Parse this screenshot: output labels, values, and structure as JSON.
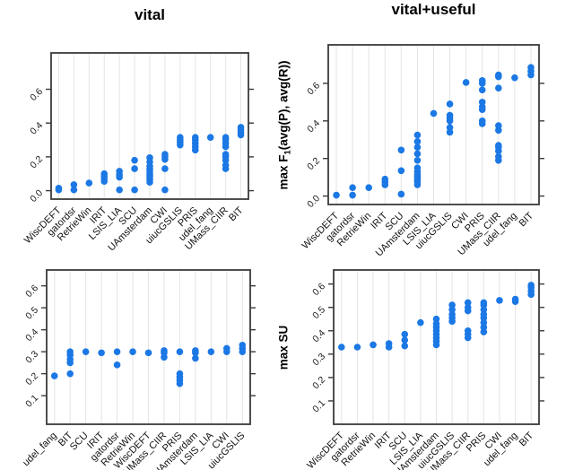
{
  "figure": {
    "background": "#ffffff",
    "dot_color": "#1b78e4",
    "grid_color": "#e4e4e4",
    "box_color": "#3a3a3a",
    "tick_color": "#3a3a3a",
    "text_color": "#000000",
    "column_titles": [
      "vital",
      "vital+useful"
    ],
    "row_ylabels": [
      "max F1(avg(P), avg(R))",
      "max SU"
    ]
  },
  "chart_data": [
    {
      "id": "f1-vital",
      "type": "scatter",
      "title": "vital",
      "xlabel": "",
      "ylabel": "",
      "grid": "vertical",
      "legend": "none",
      "yticks": [
        0.0,
        0.2,
        0.4,
        0.6
      ],
      "ytick_labels": [
        "0.0",
        "0.2",
        "0.4",
        "0.6"
      ],
      "ylim": [
        -0.05,
        0.815
      ],
      "categories": [
        "WiscDEFT",
        "gatordsr",
        "RetrieWin",
        "IRIT",
        "LSIS_LIA",
        "SCU",
        "UAmsterdam",
        "CWI",
        "uiucGSLIS",
        "PRIS",
        "udel_fang",
        "UMass_CIIR",
        "BIT"
      ],
      "points": [
        [
          0.005,
          0.015
        ],
        [
          0.005,
          0.035
        ],
        [
          0.045
        ],
        [
          0.055,
          0.07,
          0.085,
          0.1
        ],
        [
          0.005,
          0.08,
          0.095,
          0.115
        ],
        [
          0.005,
          0.13,
          0.18
        ],
        [
          0.05,
          0.065,
          0.08,
          0.09,
          0.1,
          0.115,
          0.13,
          0.145,
          0.17,
          0.195
        ],
        [
          0.005,
          0.13,
          0.185,
          0.2,
          0.215
        ],
        [
          0.27,
          0.285,
          0.3,
          0.315
        ],
        [
          0.24,
          0.26,
          0.28,
          0.3,
          0.315
        ],
        [
          0.315
        ],
        [
          0.13,
          0.15,
          0.18,
          0.2,
          0.215,
          0.26,
          0.28,
          0.3,
          0.315
        ],
        [
          0.33,
          0.345,
          0.36,
          0.375
        ]
      ]
    },
    {
      "id": "f1-vital-useful",
      "type": "scatter",
      "title": "vital+useful",
      "xlabel": "",
      "ylabel": "max F1(avg(P), avg(R))",
      "ylabel_parts": [
        {
          "t": "max F"
        },
        {
          "t": "1",
          "sub": true
        },
        {
          "t": "(avg(P), avg(R))"
        }
      ],
      "grid": "vertical",
      "legend": "none",
      "yticks": [
        0.0,
        0.2,
        0.4,
        0.6
      ],
      "ytick_labels": [
        "0.0",
        "0.2",
        "0.4",
        "0.6"
      ],
      "ylim": [
        -0.045,
        0.805
      ],
      "categories": [
        "WiscDEFT",
        "gatordsr",
        "RetrieWin",
        "IRIT",
        "SCU",
        "UAmsterdam",
        "LSIS_LIA",
        "uiucGSLIS",
        "CWI",
        "PRIS",
        "UMass_CIIR",
        "udel_fang",
        "BIT"
      ],
      "points": [
        [
          0.005
        ],
        [
          0.005,
          0.045
        ],
        [
          0.045
        ],
        [
          0.06,
          0.075,
          0.09
        ],
        [
          0.01,
          0.135,
          0.245
        ],
        [
          0.06,
          0.075,
          0.085,
          0.095,
          0.105,
          0.115,
          0.13,
          0.15,
          0.19,
          0.225,
          0.26,
          0.29,
          0.325
        ],
        [
          0.44
        ],
        [
          0.34,
          0.365,
          0.4,
          0.415,
          0.43,
          0.49
        ],
        [
          0.605
        ],
        [
          0.385,
          0.4,
          0.46,
          0.475,
          0.5,
          0.565,
          0.6,
          0.615
        ],
        [
          0.19,
          0.21,
          0.24,
          0.26,
          0.27,
          0.35,
          0.375,
          0.575,
          0.635,
          0.645
        ],
        [
          0.63
        ],
        [
          0.645,
          0.665,
          0.685
        ]
      ]
    },
    {
      "id": "su-vital",
      "type": "scatter",
      "title": "",
      "xlabel": "",
      "ylabel": "",
      "grid": "vertical",
      "legend": "none",
      "yticks": [
        0.1,
        0.2,
        0.3,
        0.4,
        0.5,
        0.6
      ],
      "ytick_labels": [
        "0.1",
        "0.2",
        "0.3",
        "0.4",
        "0.5",
        "0.6"
      ],
      "ylim": [
        -0.03,
        0.672
      ],
      "categories": [
        "udel_fang",
        "BIT",
        "SCU",
        "IRIT",
        "gatordsr",
        "RetrieWin",
        "WiscDEFT",
        "UMass_CIIR",
        "PRIS",
        "UAmsterdam",
        "LSIS_LIA",
        "CWI",
        "uiucGSLIS"
      ],
      "points": [
        [
          0.19
        ],
        [
          0.2,
          0.25,
          0.265,
          0.285,
          0.3
        ],
        [
          0.3
        ],
        [
          0.295
        ],
        [
          0.24,
          0.3
        ],
        [
          0.3
        ],
        [
          0.295
        ],
        [
          0.275,
          0.295,
          0.305
        ],
        [
          0.155,
          0.17,
          0.185,
          0.2,
          0.3
        ],
        [
          0.27,
          0.295,
          0.305
        ],
        [
          0.3
        ],
        [
          0.3,
          0.315
        ],
        [
          0.3,
          0.315,
          0.33
        ]
      ]
    },
    {
      "id": "su-vital-useful",
      "type": "scatter",
      "title": "",
      "xlabel": "",
      "ylabel": "max SU",
      "ylabel_parts": [
        {
          "t": "max SU"
        }
      ],
      "grid": "vertical",
      "legend": "none",
      "yticks": [
        0.1,
        0.2,
        0.3,
        0.4,
        0.5,
        0.6
      ],
      "ytick_labels": [
        "0.1",
        "0.2",
        "0.3",
        "0.4",
        "0.5",
        "0.6"
      ],
      "ylim": [
        0.0,
        0.66
      ],
      "categories": [
        "WiscDEFT",
        "gatordsr",
        "RetrieWin",
        "IRIT",
        "SCU",
        "LSIS_LIA",
        "UAmsterdam",
        "uiucGSLIS",
        "UMass_CIIR",
        "PRIS",
        "CWI",
        "udel_fang",
        "BIT"
      ],
      "points": [
        [
          0.33
        ],
        [
          0.33
        ],
        [
          0.34
        ],
        [
          0.33,
          0.345
        ],
        [
          0.335,
          0.36,
          0.385
        ],
        [
          0.435
        ],
        [
          0.34,
          0.355,
          0.37,
          0.385,
          0.4,
          0.415,
          0.43,
          0.45
        ],
        [
          0.44,
          0.455,
          0.47,
          0.49,
          0.51
        ],
        [
          0.37,
          0.385,
          0.4,
          0.485,
          0.5,
          0.52
        ],
        [
          0.395,
          0.415,
          0.435,
          0.455,
          0.47,
          0.49,
          0.51,
          0.52
        ],
        [
          0.53
        ],
        [
          0.525,
          0.535
        ],
        [
          0.555,
          0.57,
          0.585,
          0.595
        ]
      ]
    }
  ]
}
